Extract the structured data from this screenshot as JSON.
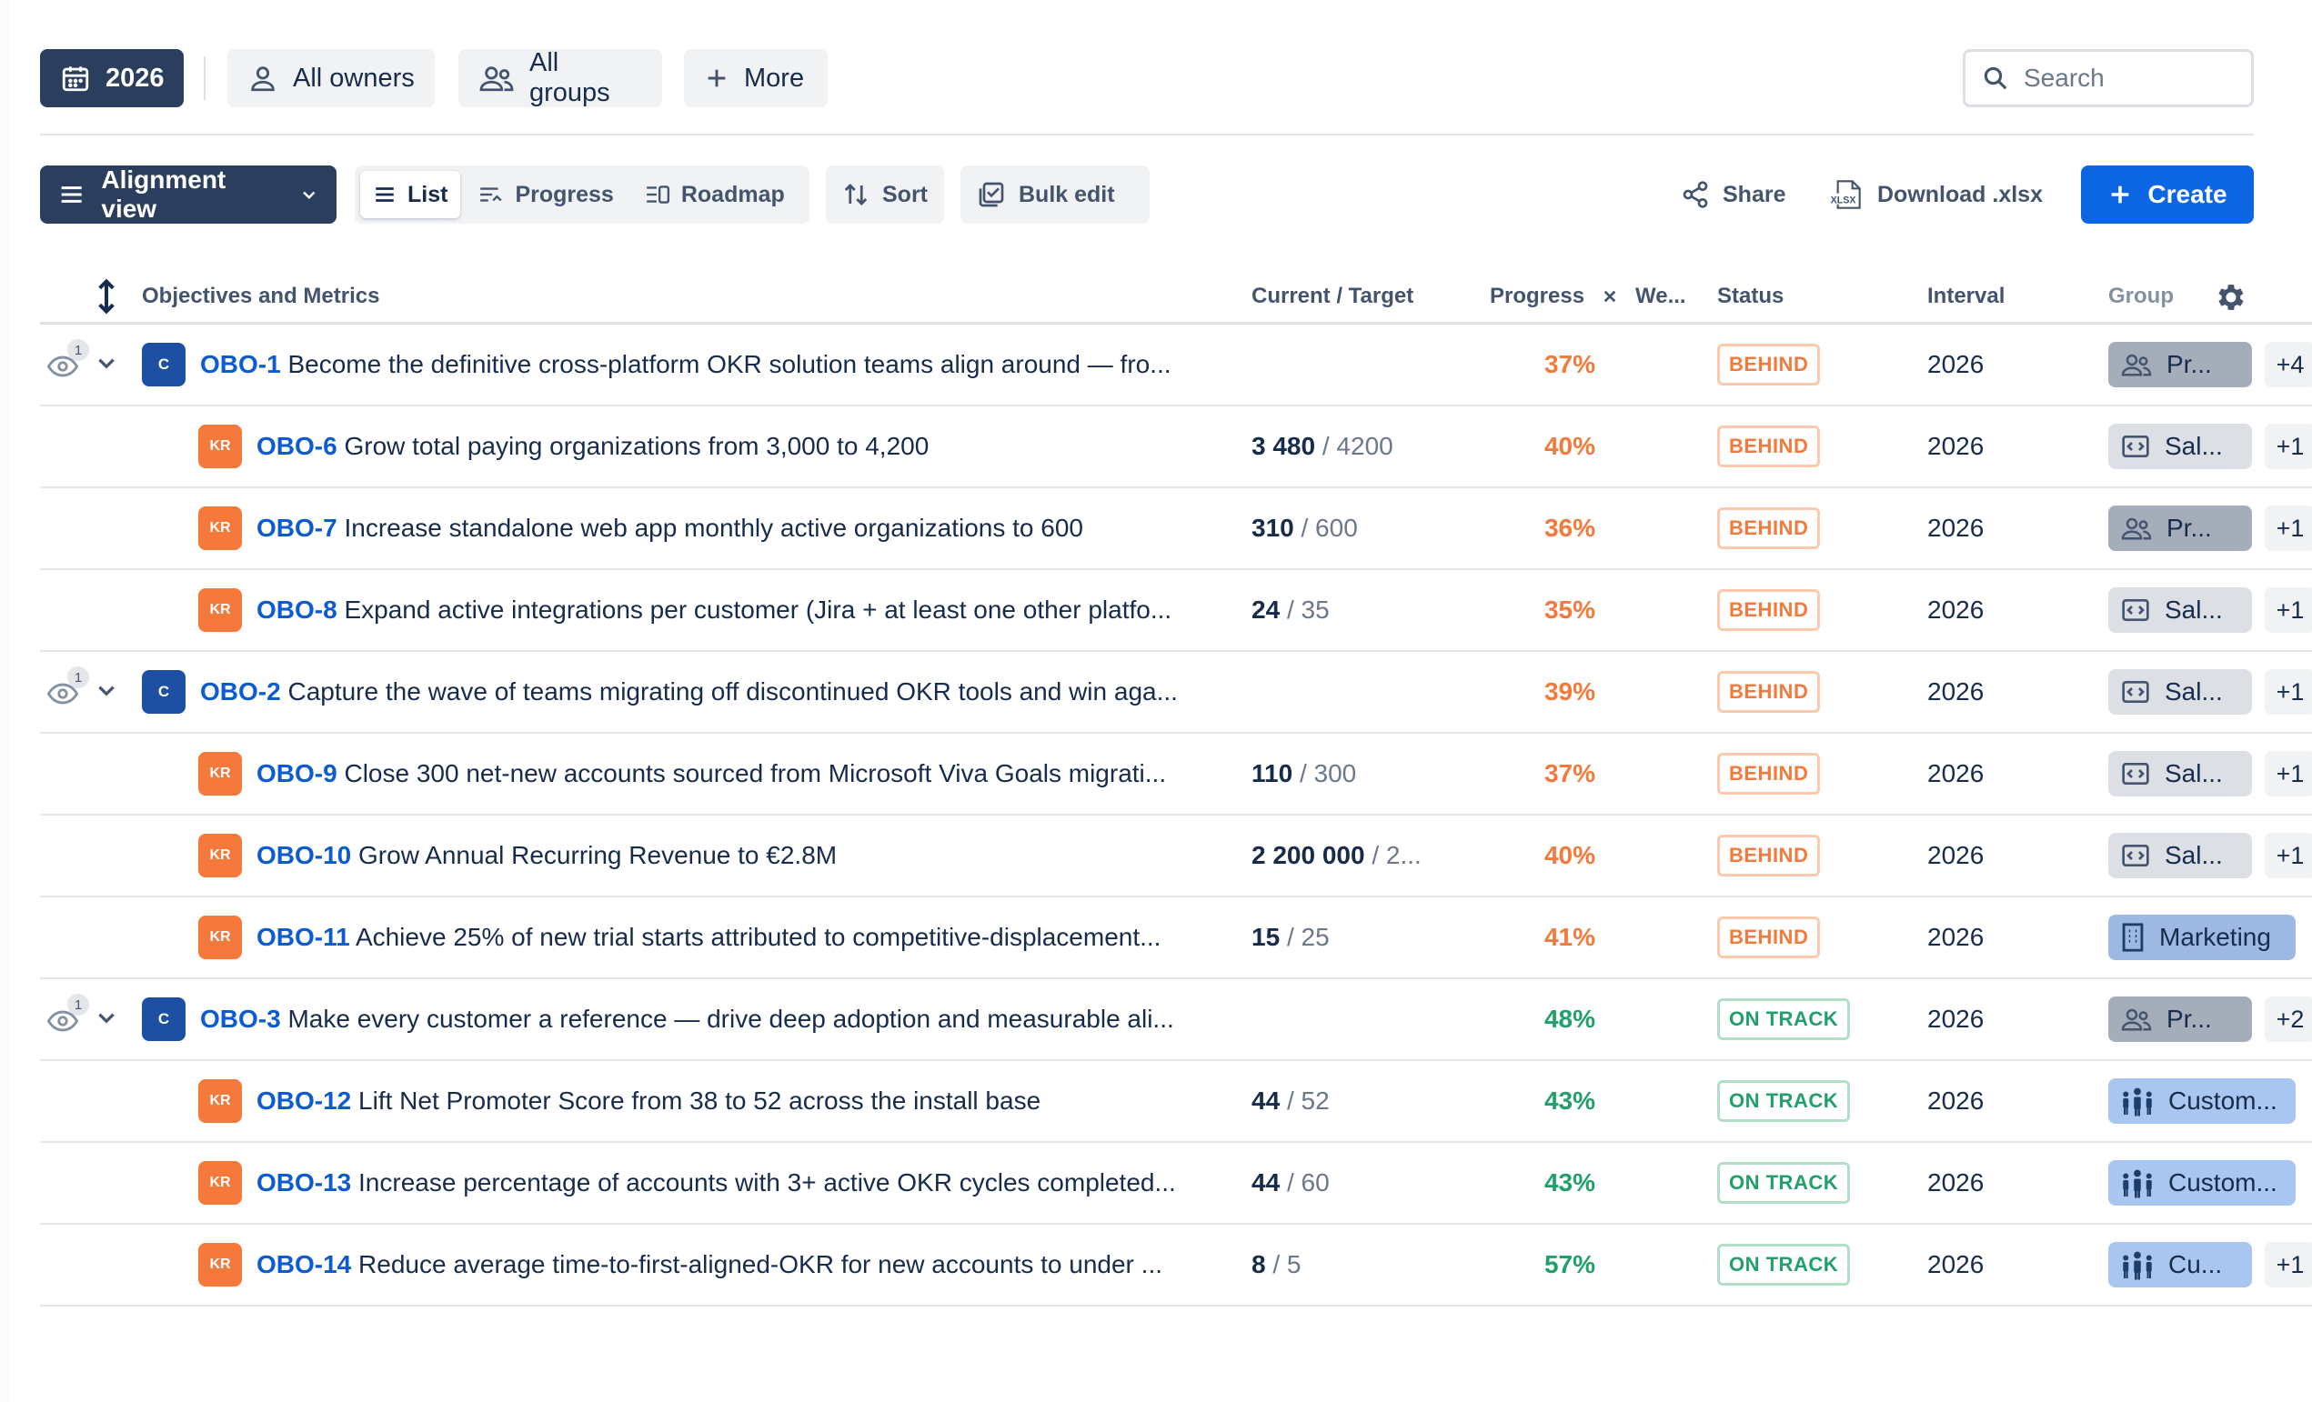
{
  "toolbar": {
    "year": "2026",
    "owners": "All owners",
    "groups": "All groups",
    "more": "More",
    "search_placeholder": "Search"
  },
  "view_bar": {
    "alignment_view": "Alignment view",
    "list": "List",
    "progress": "Progress",
    "roadmap": "Roadmap",
    "sort": "Sort",
    "bulk_edit": "Bulk edit",
    "share": "Share",
    "download": "Download .xlsx",
    "create": "Create"
  },
  "columns": {
    "objectives": "Objectives and Metrics",
    "current_target": "Current / Target",
    "progress": "Progress",
    "weight": "We...",
    "status": "Status",
    "interval": "Interval",
    "group": "Group"
  },
  "colors": {
    "behind": "#f5793a",
    "on_track": "#22a06b",
    "link": "#0c5bd0",
    "create": "#0c66e4"
  },
  "rows": [
    {
      "kind": "C",
      "id": "OBO-1",
      "title": "Become the definitive cross-platform OKR solution teams align around — fro...",
      "current": "",
      "target": "",
      "progress": "37%",
      "status": "BEHIND",
      "interval": "2026",
      "group": "Pr...",
      "group_icon": "people-icon",
      "extra": "+4",
      "watchers": "1"
    },
    {
      "kind": "KR",
      "id": "OBO-6",
      "title": "Grow total paying organizations from 3,000 to 4,200",
      "current": "3 480",
      "target": "/ 4200",
      "progress": "40%",
      "status": "BEHIND",
      "interval": "2026",
      "group": "Sal...",
      "group_icon": "code-icon",
      "extra": "+1"
    },
    {
      "kind": "KR",
      "id": "OBO-7",
      "title": "Increase standalone web app monthly active organizations to 600",
      "current": "310",
      "target": "/ 600",
      "progress": "36%",
      "status": "BEHIND",
      "interval": "2026",
      "group": "Pr...",
      "group_icon": "people-icon",
      "extra": "+1"
    },
    {
      "kind": "KR",
      "id": "OBO-8",
      "title": "Expand active integrations per customer (Jira + at least one other platfo...",
      "current": "24",
      "target": "/ 35",
      "progress": "35%",
      "status": "BEHIND",
      "interval": "2026",
      "group": "Sal...",
      "group_icon": "code-icon",
      "extra": "+1"
    },
    {
      "kind": "C",
      "id": "OBO-2",
      "title": "Capture the wave of teams migrating off discontinued OKR tools and win aga...",
      "current": "",
      "target": "",
      "progress": "39%",
      "status": "BEHIND",
      "interval": "2026",
      "group": "Sal...",
      "group_icon": "code-icon",
      "extra": "+1",
      "watchers": "1"
    },
    {
      "kind": "KR",
      "id": "OBO-9",
      "title": "Close 300 net-new accounts sourced from Microsoft Viva Goals migrati...",
      "current": "110",
      "target": "/ 300",
      "progress": "37%",
      "status": "BEHIND",
      "interval": "2026",
      "group": "Sal...",
      "group_icon": "code-icon",
      "extra": "+1"
    },
    {
      "kind": "KR",
      "id": "OBO-10",
      "title": "Grow Annual Recurring Revenue to €2.8M",
      "current": "2 200 000",
      "target": "/ 2...",
      "progress": "40%",
      "status": "BEHIND",
      "interval": "2026",
      "group": "Sal...",
      "group_icon": "code-icon",
      "extra": "+1"
    },
    {
      "kind": "KR",
      "id": "OBO-11",
      "title": "Achieve 25% of new trial starts attributed to competitive-displacement...",
      "current": "15",
      "target": "/ 25",
      "progress": "41%",
      "status": "BEHIND",
      "interval": "2026",
      "group": "Marketing",
      "group_icon": "building-icon",
      "extra": ""
    },
    {
      "kind": "C",
      "id": "OBO-3",
      "title": "Make every customer a reference — drive deep adoption and measurable ali...",
      "current": "",
      "target": "",
      "progress": "48%",
      "status": "ON TRACK",
      "interval": "2026",
      "group": "Pr...",
      "group_icon": "people-icon",
      "extra": "+2",
      "watchers": "1"
    },
    {
      "kind": "KR",
      "id": "OBO-12",
      "title": "Lift Net Promoter Score from 38 to 52 across the install base",
      "current": "44",
      "target": "/ 52",
      "progress": "43%",
      "status": "ON TRACK",
      "interval": "2026",
      "group": "Custom...",
      "group_icon": "team-icon",
      "extra": ""
    },
    {
      "kind": "KR",
      "id": "OBO-13",
      "title": "Increase percentage of accounts with 3+ active OKR cycles completed...",
      "current": "44",
      "target": "/ 60",
      "progress": "43%",
      "status": "ON TRACK",
      "interval": "2026",
      "group": "Custom...",
      "group_icon": "team-icon",
      "extra": ""
    },
    {
      "kind": "KR",
      "id": "OBO-14",
      "title": "Reduce average time-to-first-aligned-OKR for new accounts to under ...",
      "current": "8",
      "target": "/ 5",
      "progress": "57%",
      "status": "ON TRACK",
      "interval": "2026",
      "group": "Cu...",
      "group_icon": "team-icon",
      "extra": "+1"
    }
  ]
}
